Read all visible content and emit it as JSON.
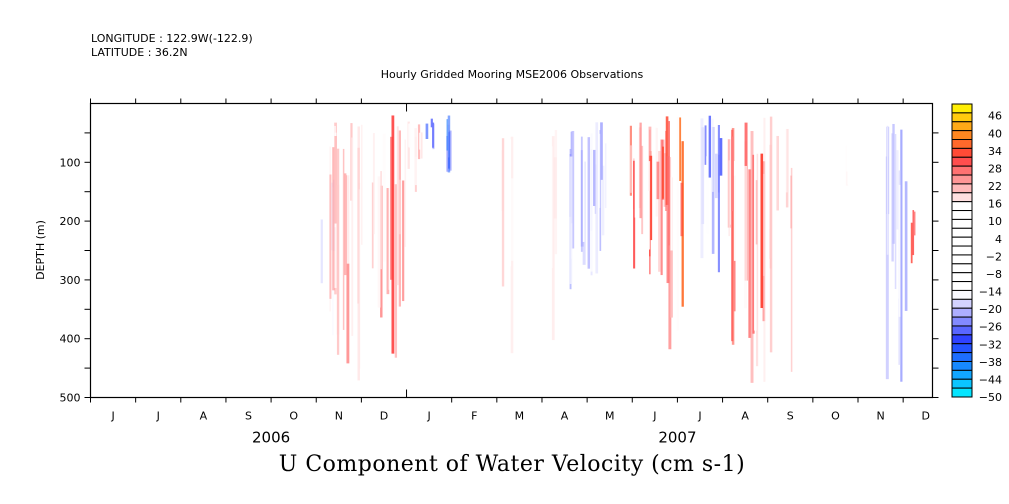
{
  "header": {
    "longitude": "LONGITUDE : 122.9W(-122.9)",
    "latitude": "LATITUDE : 36.2N"
  },
  "chart_data": {
    "type": "heatmap",
    "title": "Hourly Gridded Mooring MSE2006 Observations",
    "subtitle": "U Component of Water Velocity (cm s-1)",
    "ylabel": "DEPTH (m)",
    "xlabel": "",
    "ylim": [
      500,
      0
    ],
    "y_ticks": [
      100,
      200,
      300,
      400,
      500
    ],
    "x_range_months": [
      "2006-06",
      "2007-12"
    ],
    "x_tick_labels": [
      "J",
      "J",
      "A",
      "S",
      "O",
      "N",
      "D",
      "J",
      "F",
      "M",
      "A",
      "M",
      "J",
      "J",
      "A",
      "S",
      "O",
      "N",
      "D"
    ],
    "year_labels": [
      {
        "label": "2006",
        "month_index": 3.5
      },
      {
        "label": "2007",
        "month_index": 12.5
      }
    ],
    "colorbar": {
      "min": -50,
      "max": 50,
      "step": 3,
      "tick_labels": [
        "46",
        "40",
        "34",
        "28",
        "22",
        "16",
        "10",
        "4",
        "-2",
        "-8",
        "-14",
        "-20",
        "-26",
        "-32",
        "-38",
        "-44",
        "-50"
      ],
      "colors": {
        "yellow": "#ffff00",
        "orange": "#ff8c1a",
        "red": "#ff3333",
        "pink": "#ffb3b3",
        "white": "#ffffff",
        "lavender": "#ccccff",
        "blue": "#3333ff",
        "cyan": "#00ffff"
      }
    },
    "features": [
      {
        "month": 5.3,
        "depth_top": 100,
        "depth_bottom": 450,
        "value": -16,
        "spread": 0.3
      },
      {
        "month": 6.0,
        "depth_top": 30,
        "depth_bottom": 480,
        "value": 22,
        "spread": 0.9
      },
      {
        "month": 6.8,
        "depth_top": 20,
        "depth_bottom": 480,
        "value": 28,
        "spread": 0.25
      },
      {
        "month": 7.2,
        "depth_top": 20,
        "depth_bottom": 160,
        "value": 22,
        "spread": 0.25
      },
      {
        "month": 7.5,
        "depth_top": 20,
        "depth_bottom": 80,
        "value": -34,
        "spread": 0.1
      },
      {
        "month": 8.0,
        "depth_top": 20,
        "depth_bottom": 140,
        "value": -32,
        "spread": 0.15
      },
      {
        "month": 9.2,
        "depth_top": 20,
        "depth_bottom": 460,
        "value": 20,
        "spread": 0.15
      },
      {
        "month": 10.2,
        "depth_top": 20,
        "depth_bottom": 460,
        "value": 18,
        "spread": 0.2
      },
      {
        "month": 11.0,
        "depth_top": 20,
        "depth_bottom": 320,
        "value": -20,
        "spread": 0.6
      },
      {
        "month": 12.4,
        "depth_top": 20,
        "depth_bottom": 300,
        "value": 30,
        "spread": 0.6
      },
      {
        "month": 12.9,
        "depth_top": 20,
        "depth_bottom": 420,
        "value": 34,
        "spread": 0.25
      },
      {
        "month": 13.7,
        "depth_top": 20,
        "depth_bottom": 300,
        "value": -26,
        "spread": 0.3
      },
      {
        "month": 14.5,
        "depth_top": 20,
        "depth_bottom": 480,
        "value": 30,
        "spread": 0.5
      },
      {
        "month": 15.2,
        "depth_top": 20,
        "depth_bottom": 480,
        "value": 22,
        "spread": 0.4
      },
      {
        "month": 16.8,
        "depth_top": 20,
        "depth_bottom": 200,
        "value": 18,
        "spread": 0.3
      },
      {
        "month": 17.8,
        "depth_top": 20,
        "depth_bottom": 480,
        "value": -26,
        "spread": 0.3
      },
      {
        "month": 18.2,
        "depth_top": 180,
        "depth_bottom": 300,
        "value": 30,
        "spread": 0.05
      }
    ]
  }
}
